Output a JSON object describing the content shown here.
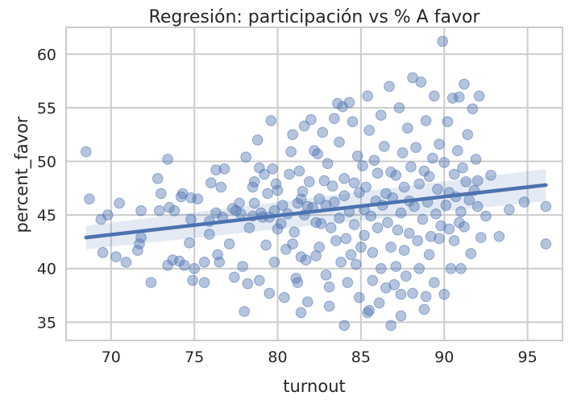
{
  "chart_data": {
    "type": "scatter",
    "title": "Regresión: participación vs % A favor",
    "xlabel": "turnout",
    "ylabel": "percent_favor",
    "xlim": [
      67.3,
      97.1
    ],
    "ylim": [
      33.3,
      62.5
    ],
    "xticks": [
      70,
      75,
      80,
      85,
      90,
      95
    ],
    "yticks": [
      35,
      40,
      45,
      50,
      55,
      60
    ],
    "grid": true,
    "colors": {
      "points": "#4c72b0",
      "line": "#4c72b0",
      "band": "#4c72b0",
      "grid": "#cccccc",
      "frame": "#cccccc"
    },
    "regression": {
      "x": [
        68.5,
        96.1
      ],
      "y": [
        42.9,
        47.8
      ],
      "ci_low": [
        41.8,
        46.3
      ],
      "ci_high": [
        44.0,
        49.3
      ]
    },
    "points": [
      [
        68.5,
        50.9
      ],
      [
        68.7,
        46.5
      ],
      [
        69.5,
        41.5
      ],
      [
        69.4,
        44.6
      ],
      [
        69.8,
        45.0
      ],
      [
        70.3,
        41.1
      ],
      [
        70.5,
        46.1
      ],
      [
        70.9,
        40.6
      ],
      [
        71.6,
        41.7
      ],
      [
        71.8,
        45.4
      ],
      [
        71.8,
        42.9
      ],
      [
        71.7,
        42.3
      ],
      [
        72.4,
        38.7
      ],
      [
        72.8,
        48.4
      ],
      [
        73.0,
        47.0
      ],
      [
        73.4,
        50.2
      ],
      [
        72.9,
        45.4
      ],
      [
        73.5,
        45.7
      ],
      [
        73.8,
        45.4
      ],
      [
        73.4,
        40.3
      ],
      [
        73.7,
        40.8
      ],
      [
        74.1,
        40.7
      ],
      [
        74.2,
        46.7
      ],
      [
        74.4,
        40.3
      ],
      [
        74.3,
        47.0
      ],
      [
        74.8,
        46.6
      ],
      [
        74.8,
        44.6
      ],
      [
        74.7,
        42.4
      ],
      [
        75.0,
        40.0
      ],
      [
        74.9,
        38.9
      ],
      [
        75.2,
        46.5
      ],
      [
        75.6,
        40.6
      ],
      [
        75.6,
        38.7
      ],
      [
        75.9,
        43.2
      ],
      [
        75.9,
        44.4
      ],
      [
        76.0,
        48.0
      ],
      [
        76.3,
        45.2
      ],
      [
        76.3,
        49.2
      ],
      [
        76.4,
        41.3
      ],
      [
        76.5,
        40.6
      ],
      [
        76.7,
        44.8
      ],
      [
        76.6,
        47.6
      ],
      [
        76.8,
        49.3
      ],
      [
        77.3,
        45.6
      ],
      [
        77.1,
        42.3
      ],
      [
        77.5,
        45.4
      ],
      [
        77.4,
        39.2
      ],
      [
        77.8,
        45.1
      ],
      [
        77.7,
        46.1
      ],
      [
        77.9,
        40.2
      ],
      [
        78.0,
        36.0
      ],
      [
        78.1,
        50.4
      ],
      [
        78.2,
        38.6
      ],
      [
        78.3,
        43.8
      ],
      [
        78.5,
        47.6
      ],
      [
        78.5,
        44.9
      ],
      [
        78.6,
        48.1
      ],
      [
        78.6,
        46.1
      ],
      [
        78.8,
        52.0
      ],
      [
        78.9,
        49.4
      ],
      [
        78.9,
        38.9
      ],
      [
        79.0,
        45.2
      ],
      [
        79.1,
        44.8
      ],
      [
        79.2,
        48.8
      ],
      [
        79.3,
        42.2
      ],
      [
        79.4,
        47.0
      ],
      [
        79.5,
        44.8
      ],
      [
        79.5,
        37.7
      ],
      [
        79.6,
        53.8
      ],
      [
        79.7,
        49.3
      ],
      [
        79.8,
        45.4
      ],
      [
        79.8,
        40.6
      ],
      [
        79.9,
        47.9
      ],
      [
        80.0,
        47.3
      ],
      [
        80.0,
        43.7
      ],
      [
        80.2,
        44.2
      ],
      [
        80.3,
        45.9
      ],
      [
        80.4,
        37.3
      ],
      [
        80.5,
        41.8
      ],
      [
        80.6,
        45.1
      ],
      [
        80.7,
        48.8
      ],
      [
        80.8,
        50.9
      ],
      [
        80.9,
        42.3
      ],
      [
        80.9,
        52.5
      ],
      [
        81.0,
        43.4
      ],
      [
        81.1,
        39.1
      ],
      [
        81.2,
        46.1
      ],
      [
        81.2,
        38.7
      ],
      [
        81.3,
        49.1
      ],
      [
        81.4,
        46.5
      ],
      [
        81.4,
        41.1
      ],
      [
        81.5,
        47.2
      ],
      [
        81.6,
        53.3
      ],
      [
        81.6,
        45.0
      ],
      [
        81.7,
        40.8
      ],
      [
        81.8,
        45.8
      ],
      [
        81.8,
        36.9
      ],
      [
        81.9,
        48.1
      ],
      [
        82.0,
        53.9
      ],
      [
        82.1,
        45.7
      ],
      [
        82.2,
        51.0
      ],
      [
        82.3,
        44.3
      ],
      [
        82.3,
        41.2
      ],
      [
        82.4,
        50.7
      ],
      [
        82.5,
        46.5
      ],
      [
        82.5,
        42.0
      ],
      [
        82.6,
        44.2
      ],
      [
        82.7,
        52.7
      ],
      [
        82.8,
        48.2
      ],
      [
        82.9,
        45.9
      ],
      [
        82.9,
        39.4
      ],
      [
        83.0,
        49.8
      ],
      [
        83.1,
        38.3
      ],
      [
        83.1,
        36.5
      ],
      [
        83.2,
        43.8
      ],
      [
        83.3,
        47.7
      ],
      [
        83.4,
        54.0
      ],
      [
        83.4,
        46.2
      ],
      [
        83.5,
        42.6
      ],
      [
        83.6,
        55.4
      ],
      [
        83.7,
        51.8
      ],
      [
        83.7,
        44.7
      ],
      [
        83.8,
        40.6
      ],
      [
        83.9,
        55.1
      ],
      [
        84.0,
        48.4
      ],
      [
        84.0,
        46.8
      ],
      [
        84.1,
        42.8
      ],
      [
        84.2,
        38.7
      ],
      [
        84.3,
        55.5
      ],
      [
        84.3,
        45.3
      ],
      [
        84.4,
        41.3
      ],
      [
        84.5,
        53.7
      ],
      [
        84.6,
        48.0
      ],
      [
        84.6,
        44.1
      ],
      [
        84.7,
        40.4
      ],
      [
        84.8,
        50.5
      ],
      [
        84.9,
        47.1
      ],
      [
        84.9,
        37.3
      ],
      [
        85.0,
        42.0
      ],
      [
        85.1,
        49.6
      ],
      [
        85.2,
        45.5
      ],
      [
        85.2,
        43.1
      ],
      [
        85.3,
        47.6
      ],
      [
        85.4,
        56.1
      ],
      [
        85.4,
        35.9
      ],
      [
        85.5,
        52.9
      ],
      [
        85.6,
        44.9
      ],
      [
        85.7,
        41.5
      ],
      [
        85.7,
        38.9
      ],
      [
        85.8,
        50.1
      ],
      [
        85.9,
        46.3
      ],
      [
        86.0,
        43.8
      ],
      [
        86.0,
        48.9
      ],
      [
        86.1,
        36.8
      ],
      [
        86.2,
        54.3
      ],
      [
        86.2,
        40.0
      ],
      [
        86.3,
        45.9
      ],
      [
        86.4,
        51.4
      ],
      [
        86.5,
        47.0
      ],
      [
        86.5,
        38.2
      ],
      [
        86.6,
        44.3
      ],
      [
        86.7,
        57.0
      ],
      [
        86.8,
        42.0
      ],
      [
        86.8,
        49.0
      ],
      [
        86.9,
        46.6
      ],
      [
        87.0,
        38.5
      ],
      [
        87.1,
        48.7
      ],
      [
        87.1,
        40.2
      ],
      [
        87.2,
        43.6
      ],
      [
        87.3,
        55.0
      ],
      [
        87.4,
        45.2
      ],
      [
        87.4,
        35.6
      ],
      [
        87.5,
        50.8
      ],
      [
        87.6,
        47.6
      ],
      [
        87.6,
        41.7
      ],
      [
        87.7,
        39.3
      ],
      [
        87.8,
        53.1
      ],
      [
        87.9,
        46.3
      ],
      [
        87.9,
        43.3
      ],
      [
        88.0,
        49.5
      ],
      [
        88.1,
        57.8
      ],
      [
        88.1,
        37.7
      ],
      [
        88.2,
        45.8
      ],
      [
        88.3,
        51.3
      ],
      [
        88.4,
        42.6
      ],
      [
        88.5,
        47.9
      ],
      [
        88.5,
        40.0
      ],
      [
        88.6,
        57.4
      ],
      [
        88.7,
        44.6
      ],
      [
        88.8,
        49.1
      ],
      [
        88.8,
        36.2
      ],
      [
        88.9,
        53.8
      ],
      [
        89.0,
        46.2
      ],
      [
        89.1,
        41.3
      ],
      [
        89.1,
        48.6
      ],
      [
        89.2,
        43.0
      ],
      [
        89.3,
        50.3
      ],
      [
        89.4,
        56.1
      ],
      [
        89.4,
        38.7
      ],
      [
        89.5,
        45.1
      ],
      [
        89.6,
        47.4
      ],
      [
        89.7,
        42.8
      ],
      [
        89.7,
        51.6
      ],
      [
        89.8,
        44.0
      ],
      [
        89.9,
        61.2
      ],
      [
        90.0,
        49.9
      ],
      [
        90.0,
        37.6
      ],
      [
        90.1,
        45.9
      ],
      [
        90.2,
        53.7
      ],
      [
        90.3,
        43.7
      ],
      [
        90.3,
        47.1
      ],
      [
        90.4,
        40.0
      ],
      [
        90.5,
        55.9
      ],
      [
        90.6,
        48.8
      ],
      [
        90.6,
        42.6
      ],
      [
        90.7,
        46.7
      ],
      [
        90.8,
        51.0
      ],
      [
        90.9,
        44.3
      ],
      [
        90.9,
        56.0
      ],
      [
        91.0,
        45.3
      ],
      [
        91.1,
        49.4
      ],
      [
        91.2,
        43.9
      ],
      [
        91.2,
        57.2
      ],
      [
        91.3,
        48.1
      ],
      [
        91.4,
        52.5
      ],
      [
        91.5,
        46.4
      ],
      [
        91.6,
        41.4
      ],
      [
        91.7,
        54.9
      ],
      [
        91.8,
        47.3
      ],
      [
        91.9,
        50.2
      ],
      [
        92.0,
        48.2
      ],
      [
        92.0,
        45.8
      ],
      [
        92.1,
        56.1
      ],
      [
        92.2,
        42.9
      ],
      [
        92.5,
        44.9
      ],
      [
        92.8,
        48.7
      ],
      [
        93.3,
        43.0
      ],
      [
        93.9,
        45.5
      ],
      [
        94.8,
        46.2
      ],
      [
        96.1,
        45.8
      ],
      [
        96.1,
        42.3
      ],
      [
        81.4,
        35.9
      ],
      [
        84.0,
        34.7
      ],
      [
        85.5,
        36.1
      ],
      [
        86.8,
        34.7
      ],
      [
        87.4,
        37.6
      ],
      [
        88.9,
        37.4
      ],
      [
        91.0,
        40.0
      ]
    ]
  }
}
